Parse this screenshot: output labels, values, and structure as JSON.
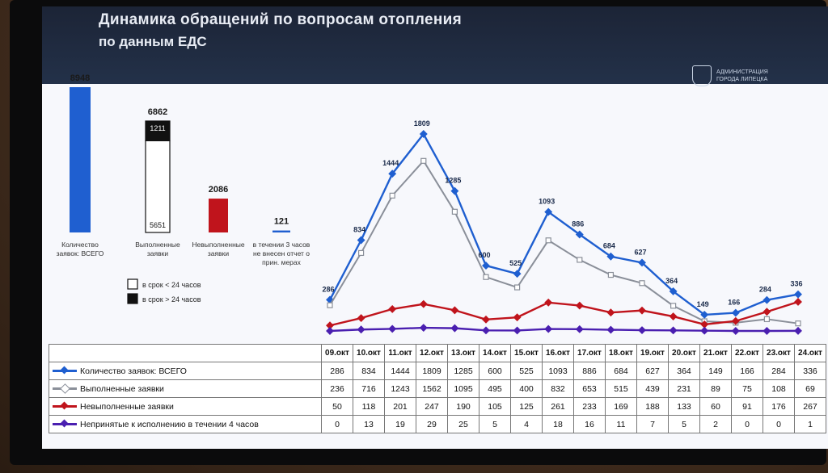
{
  "slide": {
    "title_line1": "Динамика обращений по вопросам отопления",
    "title_line2": "по данным ЕДС",
    "logo_text_line1": "Администрация",
    "logo_text_line2": "города Липецка"
  },
  "bar_chart": {
    "type": "bar",
    "bars": [
      {
        "label": "Количество заявок: ВСЕГО",
        "value": 8948,
        "color": "#1f5fd0"
      },
      {
        "label": "Выполненные заявки",
        "value": 6862,
        "stacked": [
          {
            "value": 5651,
            "label": "5651",
            "color": "#ffffff"
          },
          {
            "value": 1211,
            "label": "1211",
            "color": "#111111"
          }
        ]
      },
      {
        "label": "Невыполненные заявки",
        "value": 2086,
        "color": "#c0141c"
      },
      {
        "label": "в течении 3 часов не внесен отчет о прин. мерах",
        "value": 121,
        "color": "#1f5fd0"
      }
    ],
    "values_text": [
      "8948",
      "6862",
      "2086",
      "121"
    ],
    "stack_labels": [
      "5651",
      "1211"
    ],
    "category_labels": [
      [
        "Количество",
        "заявок: ВСЕГО"
      ],
      [
        "Выполненные",
        "заявки"
      ],
      [
        "Невыполненные",
        "заявки"
      ],
      [
        "в течении 3 часов",
        "не внесен отчет о",
        "прин. мерах"
      ]
    ],
    "legend": [
      {
        "label": "в срок  < 24 часов",
        "color": "#ffffff"
      },
      {
        "label": "в срок  > 24 часов",
        "color": "#111111"
      }
    ]
  },
  "chart_data": {
    "type": "line",
    "categories": [
      "09.окт",
      "10.окт",
      "11.окт",
      "12.окт",
      "13.окт",
      "14.окт",
      "15.окт",
      "16.окт",
      "17.окт",
      "18.окт",
      "19.окт",
      "20.окт",
      "21.окт",
      "22.окт",
      "23.окт",
      "24.окт"
    ],
    "series": [
      {
        "name": "Количество заявок: ВСЕГО",
        "values": [
          286,
          834,
          1444,
          1809,
          1285,
          600,
          525,
          1093,
          886,
          684,
          627,
          364,
          149,
          166,
          284,
          336
        ],
        "color": "#1f5fd0",
        "labeled": true
      },
      {
        "name": "Выполненные заявки",
        "values": [
          236,
          716,
          1243,
          1562,
          1095,
          495,
          400,
          832,
          653,
          515,
          439,
          231,
          89,
          75,
          108,
          69
        ],
        "color": "#8a8f99",
        "labeled": false
      },
      {
        "name": "Невыполненные заявки",
        "values": [
          50,
          118,
          201,
          247,
          190,
          105,
          125,
          261,
          233,
          169,
          188,
          133,
          60,
          91,
          176,
          267
        ],
        "color": "#c0141c",
        "labeled": false
      },
      {
        "name": "Непринятые к исполнению в течении 4 часов",
        "values": [
          0,
          13,
          19,
          29,
          25,
          5,
          4,
          18,
          16,
          11,
          7,
          5,
          2,
          0,
          0,
          1
        ],
        "color": "#4a1fb0",
        "labeled": false
      }
    ],
    "point_labels": [
      "286",
      "834",
      "1444",
      "1809",
      "1285",
      "600",
      "525",
      "1093",
      "886",
      "684",
      "627",
      "364",
      "149",
      "166",
      "284",
      "336"
    ]
  },
  "table": {
    "rows": [
      {
        "name": "Количество заявок: ВСЕГО",
        "cells": [
          "286",
          "834",
          "1444",
          "1809",
          "1285",
          "600",
          "525",
          "1093",
          "886",
          "684",
          "627",
          "364",
          "149",
          "166",
          "284",
          "336"
        ]
      },
      {
        "name": "Выполненные заявки",
        "cells": [
          "236",
          "716",
          "1243",
          "1562",
          "1095",
          "495",
          "400",
          "832",
          "653",
          "515",
          "439",
          "231",
          "89",
          "75",
          "108",
          "69"
        ]
      },
      {
        "name": "Невыполненные заявки",
        "cells": [
          "50",
          "118",
          "201",
          "247",
          "190",
          "105",
          "125",
          "261",
          "233",
          "169",
          "188",
          "133",
          "60",
          "91",
          "176",
          "267"
        ]
      },
      {
        "name": "Непринятые к исполнению в течении 4 часов",
        "cells": [
          "0",
          "13",
          "19",
          "29",
          "25",
          "5",
          "4",
          "18",
          "16",
          "11",
          "7",
          "5",
          "2",
          "0",
          "0",
          "1"
        ]
      }
    ]
  }
}
